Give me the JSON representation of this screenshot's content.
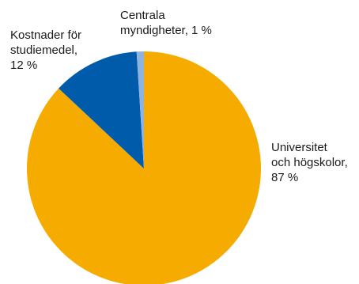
{
  "chart_data": {
    "type": "pie",
    "start_angle_deg": 0,
    "direction": "clockwise",
    "slices": [
      {
        "label_lines": [
          "Universitet",
          "och högskolor,",
          "87 %"
        ],
        "value": 87,
        "color": "#f5ab00"
      },
      {
        "label_lines": [
          "Kostnader för",
          "studiemedel,",
          "12 %"
        ],
        "value": 12,
        "color": "#005bab"
      },
      {
        "label_lines": [
          "Centrala",
          "myndigheter, 1 %"
        ],
        "value": 1,
        "color": "#8fb3e0"
      }
    ]
  }
}
